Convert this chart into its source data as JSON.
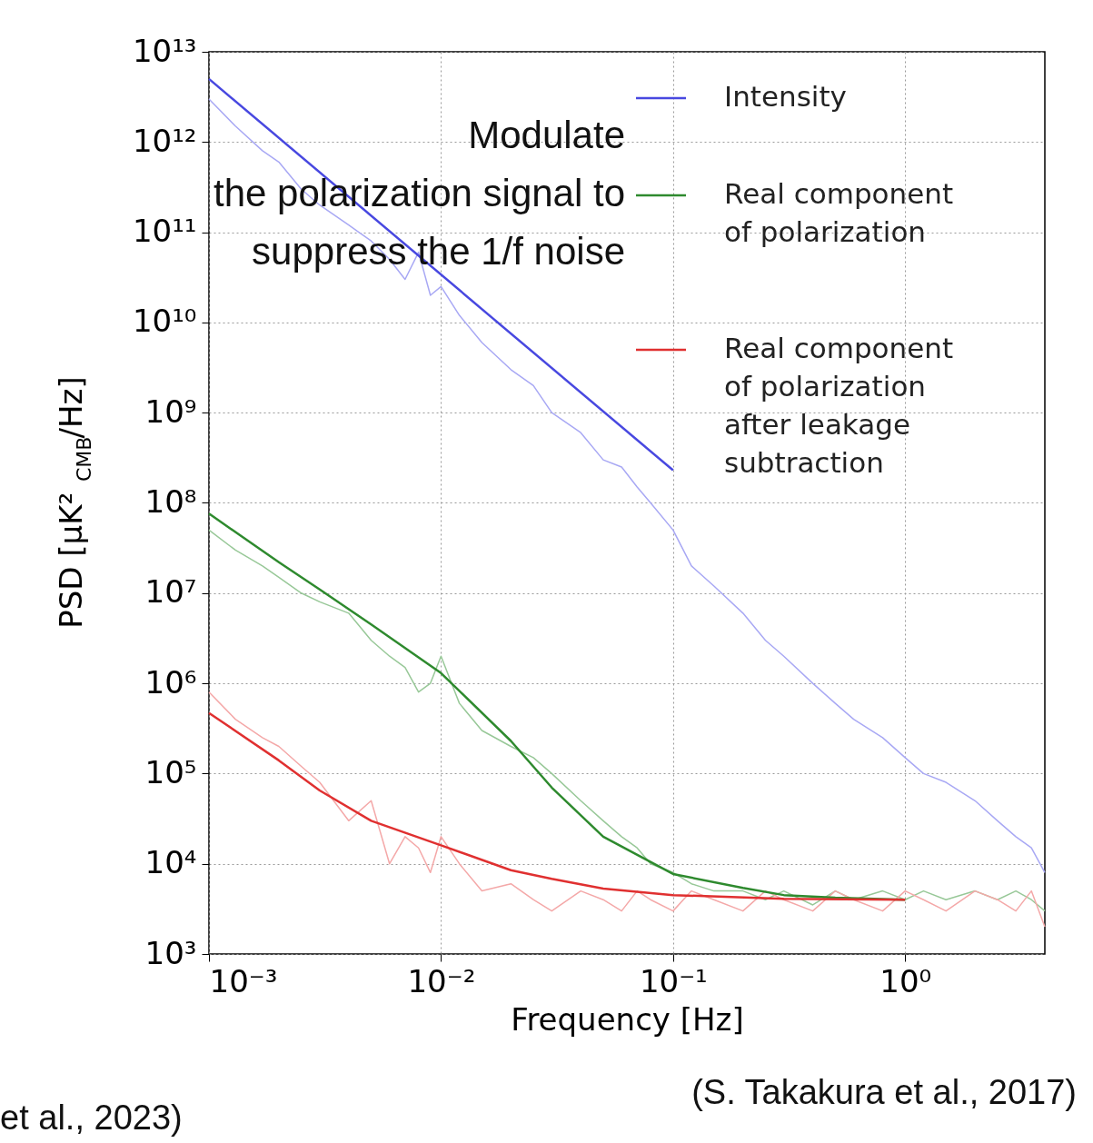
{
  "chart_data": {
    "type": "line",
    "xlabel": "Frequency [Hz]",
    "ylabel": "PSD [μK²$_{CMB}$/Hz]",
    "log": "xy",
    "grid": true,
    "legend": "top right",
    "line_style": "solid",
    "marker": "none",
    "xlim": [
      0.001,
      4
    ],
    "ylim": [
      1000,
      10000000000000
    ],
    "xticks": [
      {
        "value": 0.001,
        "label": "10⁻³"
      },
      {
        "value": 0.01,
        "label": "10⁻²"
      },
      {
        "value": 0.1,
        "label": "10⁻¹"
      },
      {
        "value": 1,
        "label": "10⁰"
      }
    ],
    "yticks": [
      {
        "value": 1000,
        "label": "10³"
      },
      {
        "value": 10000,
        "label": "10⁴"
      },
      {
        "value": 100000,
        "label": "10⁵"
      },
      {
        "value": 1000000,
        "label": "10⁶"
      },
      {
        "value": 10000000,
        "label": "10⁷"
      },
      {
        "value": 100000000,
        "label": "10⁸"
      },
      {
        "value": 1000000000,
        "label": "10⁹"
      },
      {
        "value": 10000000000,
        "label": "10¹⁰"
      },
      {
        "value": 100000000000,
        "label": "10¹¹"
      },
      {
        "value": 1000000000000,
        "label": "10¹²"
      },
      {
        "value": 10000000000000,
        "label": "10¹³"
      }
    ],
    "series": [
      {
        "color": "#a8a8f4",
        "x": [
          0.001,
          0.0013,
          0.0017,
          0.002,
          0.0025,
          0.003,
          0.004,
          0.005,
          0.006,
          0.007,
          0.008,
          0.009,
          0.01,
          0.012,
          0.015,
          0.02,
          0.025,
          0.03,
          0.04,
          0.05,
          0.06,
          0.07,
          0.08,
          0.1,
          0.12,
          0.15,
          0.2,
          0.25,
          0.3,
          0.4,
          0.5,
          0.6,
          0.8,
          1.0,
          1.2,
          1.5,
          2.0,
          2.5,
          3.0,
          3.5,
          4.0
        ],
        "values": [
          3000000000000.0,
          1500000000000.0,
          800000000000.0,
          600000000000.0,
          300000000000.0,
          200000000000.0,
          120000000000.0,
          80000000000.0,
          50000000000.0,
          30000000000.0,
          60000000000.0,
          20000000000.0,
          25000000000.0,
          12000000000.0,
          6000000000.0,
          3000000000.0,
          2000000000.0,
          1000000000.0,
          600000000.0,
          300000000.0,
          250000000.0,
          150000000.0,
          100000000.0,
          50000000.0,
          20000000.0,
          12000000.0,
          6000000.0,
          3000000.0,
          2000000.0,
          1000000.0,
          600000.0,
          400000.0,
          250000.0,
          150000.0,
          100000.0,
          80000.0,
          50000.0,
          30000.0,
          20000.0,
          15000.0,
          8000.0
        ]
      },
      {
        "color": "#98c898",
        "x": [
          0.001,
          0.0013,
          0.0017,
          0.002,
          0.0025,
          0.003,
          0.004,
          0.005,
          0.006,
          0.007,
          0.008,
          0.009,
          0.01,
          0.012,
          0.015,
          0.02,
          0.025,
          0.03,
          0.04,
          0.05,
          0.06,
          0.07,
          0.08,
          0.1,
          0.12,
          0.15,
          0.2,
          0.25,
          0.3,
          0.4,
          0.5,
          0.6,
          0.8,
          1.0,
          1.2,
          1.5,
          2.0,
          2.5,
          3.0,
          3.5,
          4.0
        ],
        "values": [
          50000000.0,
          30000000.0,
          20000000.0,
          15000000.0,
          10000000.0,
          8000000.0,
          6000000.0,
          3000000.0,
          2000000.0,
          1500000.0,
          800000.0,
          1000000.0,
          2000000.0,
          600000.0,
          300000.0,
          200000.0,
          150000.0,
          100000.0,
          50000.0,
          30000.0,
          20000.0,
          15000.0,
          10000.0,
          8000.0,
          6000.0,
          5000.0,
          5000.0,
          4000.0,
          5000.0,
          3500.0,
          5000.0,
          4000.0,
          5000.0,
          4000.0,
          5000.0,
          4000.0,
          5000.0,
          4000.0,
          5000.0,
          4000.0,
          3000.0
        ]
      },
      {
        "color": "#f4a8a8",
        "x": [
          0.001,
          0.0013,
          0.0017,
          0.002,
          0.0025,
          0.003,
          0.004,
          0.005,
          0.006,
          0.007,
          0.008,
          0.009,
          0.01,
          0.012,
          0.015,
          0.02,
          0.025,
          0.03,
          0.04,
          0.05,
          0.06,
          0.07,
          0.08,
          0.1,
          0.12,
          0.15,
          0.2,
          0.25,
          0.3,
          0.4,
          0.5,
          0.6,
          0.8,
          1.0,
          1.2,
          1.5,
          2.0,
          2.5,
          3.0,
          3.5,
          4.0
        ],
        "values": [
          800000.0,
          400000.0,
          250000.0,
          200000.0,
          120000.0,
          80000.0,
          30000.0,
          50000.0,
          10000.0,
          20000.0,
          15000.0,
          8000.0,
          20000.0,
          10000.0,
          5000.0,
          6000.0,
          4000.0,
          3000.0,
          5000.0,
          4000.0,
          3000.0,
          5000.0,
          4000.0,
          3000.0,
          5000.0,
          4000.0,
          3000.0,
          5000.0,
          4000.0,
          3000.0,
          5000.0,
          4000.0,
          3000.0,
          5000.0,
          4000.0,
          3000.0,
          5000.0,
          4000.0,
          3000.0,
          5000.0,
          2000.0
        ]
      },
      {
        "name": "Intensity",
        "color": "#4848e0",
        "x": [
          0.001,
          0.1
        ],
        "values": [
          5000000000000.0,
          230000000.0
        ]
      },
      {
        "name": "Real component of polarization",
        "color": "#2e8a2e",
        "x": [
          0.001,
          0.002,
          0.003,
          0.005,
          0.01,
          0.02,
          0.03,
          0.05,
          0.1,
          0.2,
          0.3,
          0.5,
          1.0
        ],
        "values": [
          76000000.0,
          22000000.0,
          11000000.0,
          4500000.0,
          1300000.0,
          230000.0,
          70000.0,
          20000.0,
          7700.0,
          5400.0,
          4500.0,
          4200.0,
          4000.0
        ]
      },
      {
        "name": "Real component of polarization after leakage subtraction",
        "color": "#e03030",
        "x": [
          0.001,
          0.002,
          0.003,
          0.005,
          0.01,
          0.02,
          0.03,
          0.05,
          0.1,
          0.3,
          1.0
        ],
        "values": [
          470000.0,
          140000.0,
          65000.0,
          30000.0,
          16000.0,
          8500.0,
          6800.0,
          5300.0,
          4500.0,
          4100.0,
          4000.0
        ]
      }
    ],
    "annotations": [
      "Modulate the polarization signal to suppress the 1/f noise",
      "(S. Takakura et al., 2017)",
      "et al., 2023)"
    ]
  }
}
